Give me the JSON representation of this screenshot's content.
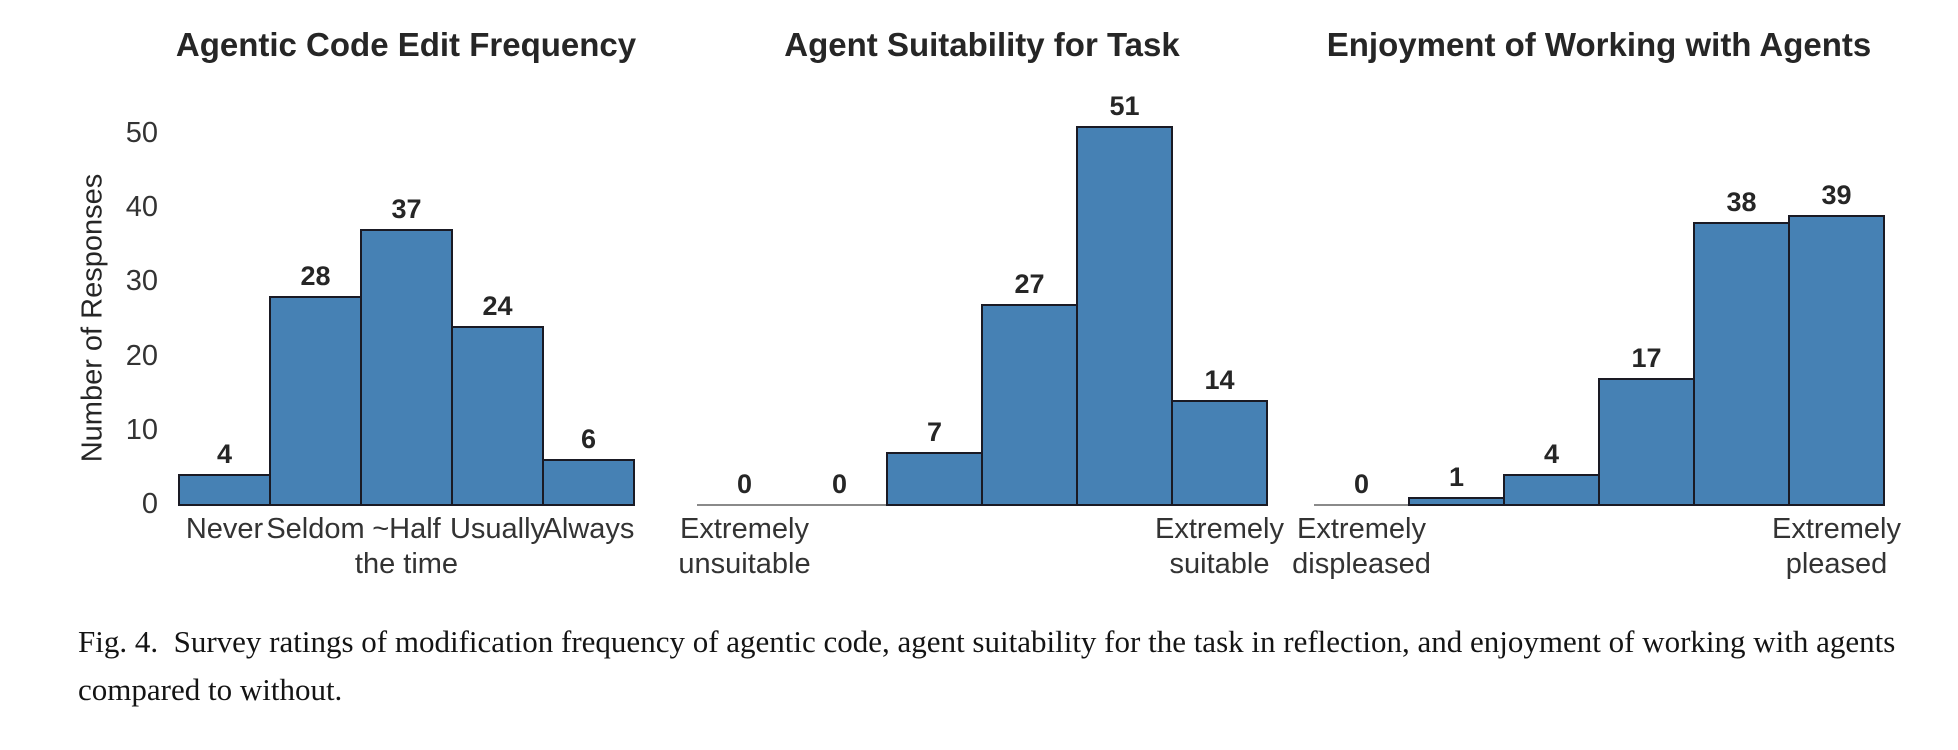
{
  "figure": {
    "caption": "Fig. 4.  Survey ratings of modification frequency of agentic code, agent suitability for the task in reflection, and enjoyment of working with agents compared to without."
  },
  "colors": {
    "bar_fill": "#4681b4",
    "bar_edge": "#1a1a24",
    "axis_line": "#8a8a8a",
    "text": "#262626"
  },
  "chart_data": [
    {
      "type": "bar",
      "title": "Agentic Code Edit Frequency",
      "ylabel": "Number of Responses",
      "categories": [
        "Never",
        "Seldom",
        "~Half\nthe time",
        "Usually",
        "Always"
      ],
      "values": [
        4,
        28,
        37,
        24,
        6
      ],
      "yticks": [
        0,
        10,
        20,
        30,
        40,
        50
      ],
      "ylim": [
        0,
        51
      ],
      "grid": false,
      "legend": null
    },
    {
      "type": "bar",
      "title": "Agent Suitability for Task",
      "ylabel": "",
      "categories": [
        "Extremely\nunsuitable",
        "",
        "",
        "",
        "",
        "Extremely\nsuitable"
      ],
      "values": [
        0,
        0,
        7,
        27,
        51,
        14
      ],
      "ylim": [
        0,
        51
      ],
      "grid": false,
      "legend": null
    },
    {
      "type": "bar",
      "title": "Enjoyment of Working with Agents",
      "ylabel": "",
      "categories": [
        "Extremely\ndispleased",
        "",
        "",
        "",
        "",
        "Extremely\npleased"
      ],
      "values": [
        0,
        1,
        4,
        17,
        38,
        39
      ],
      "ylim": [
        0,
        51
      ],
      "grid": false,
      "legend": null
    }
  ]
}
